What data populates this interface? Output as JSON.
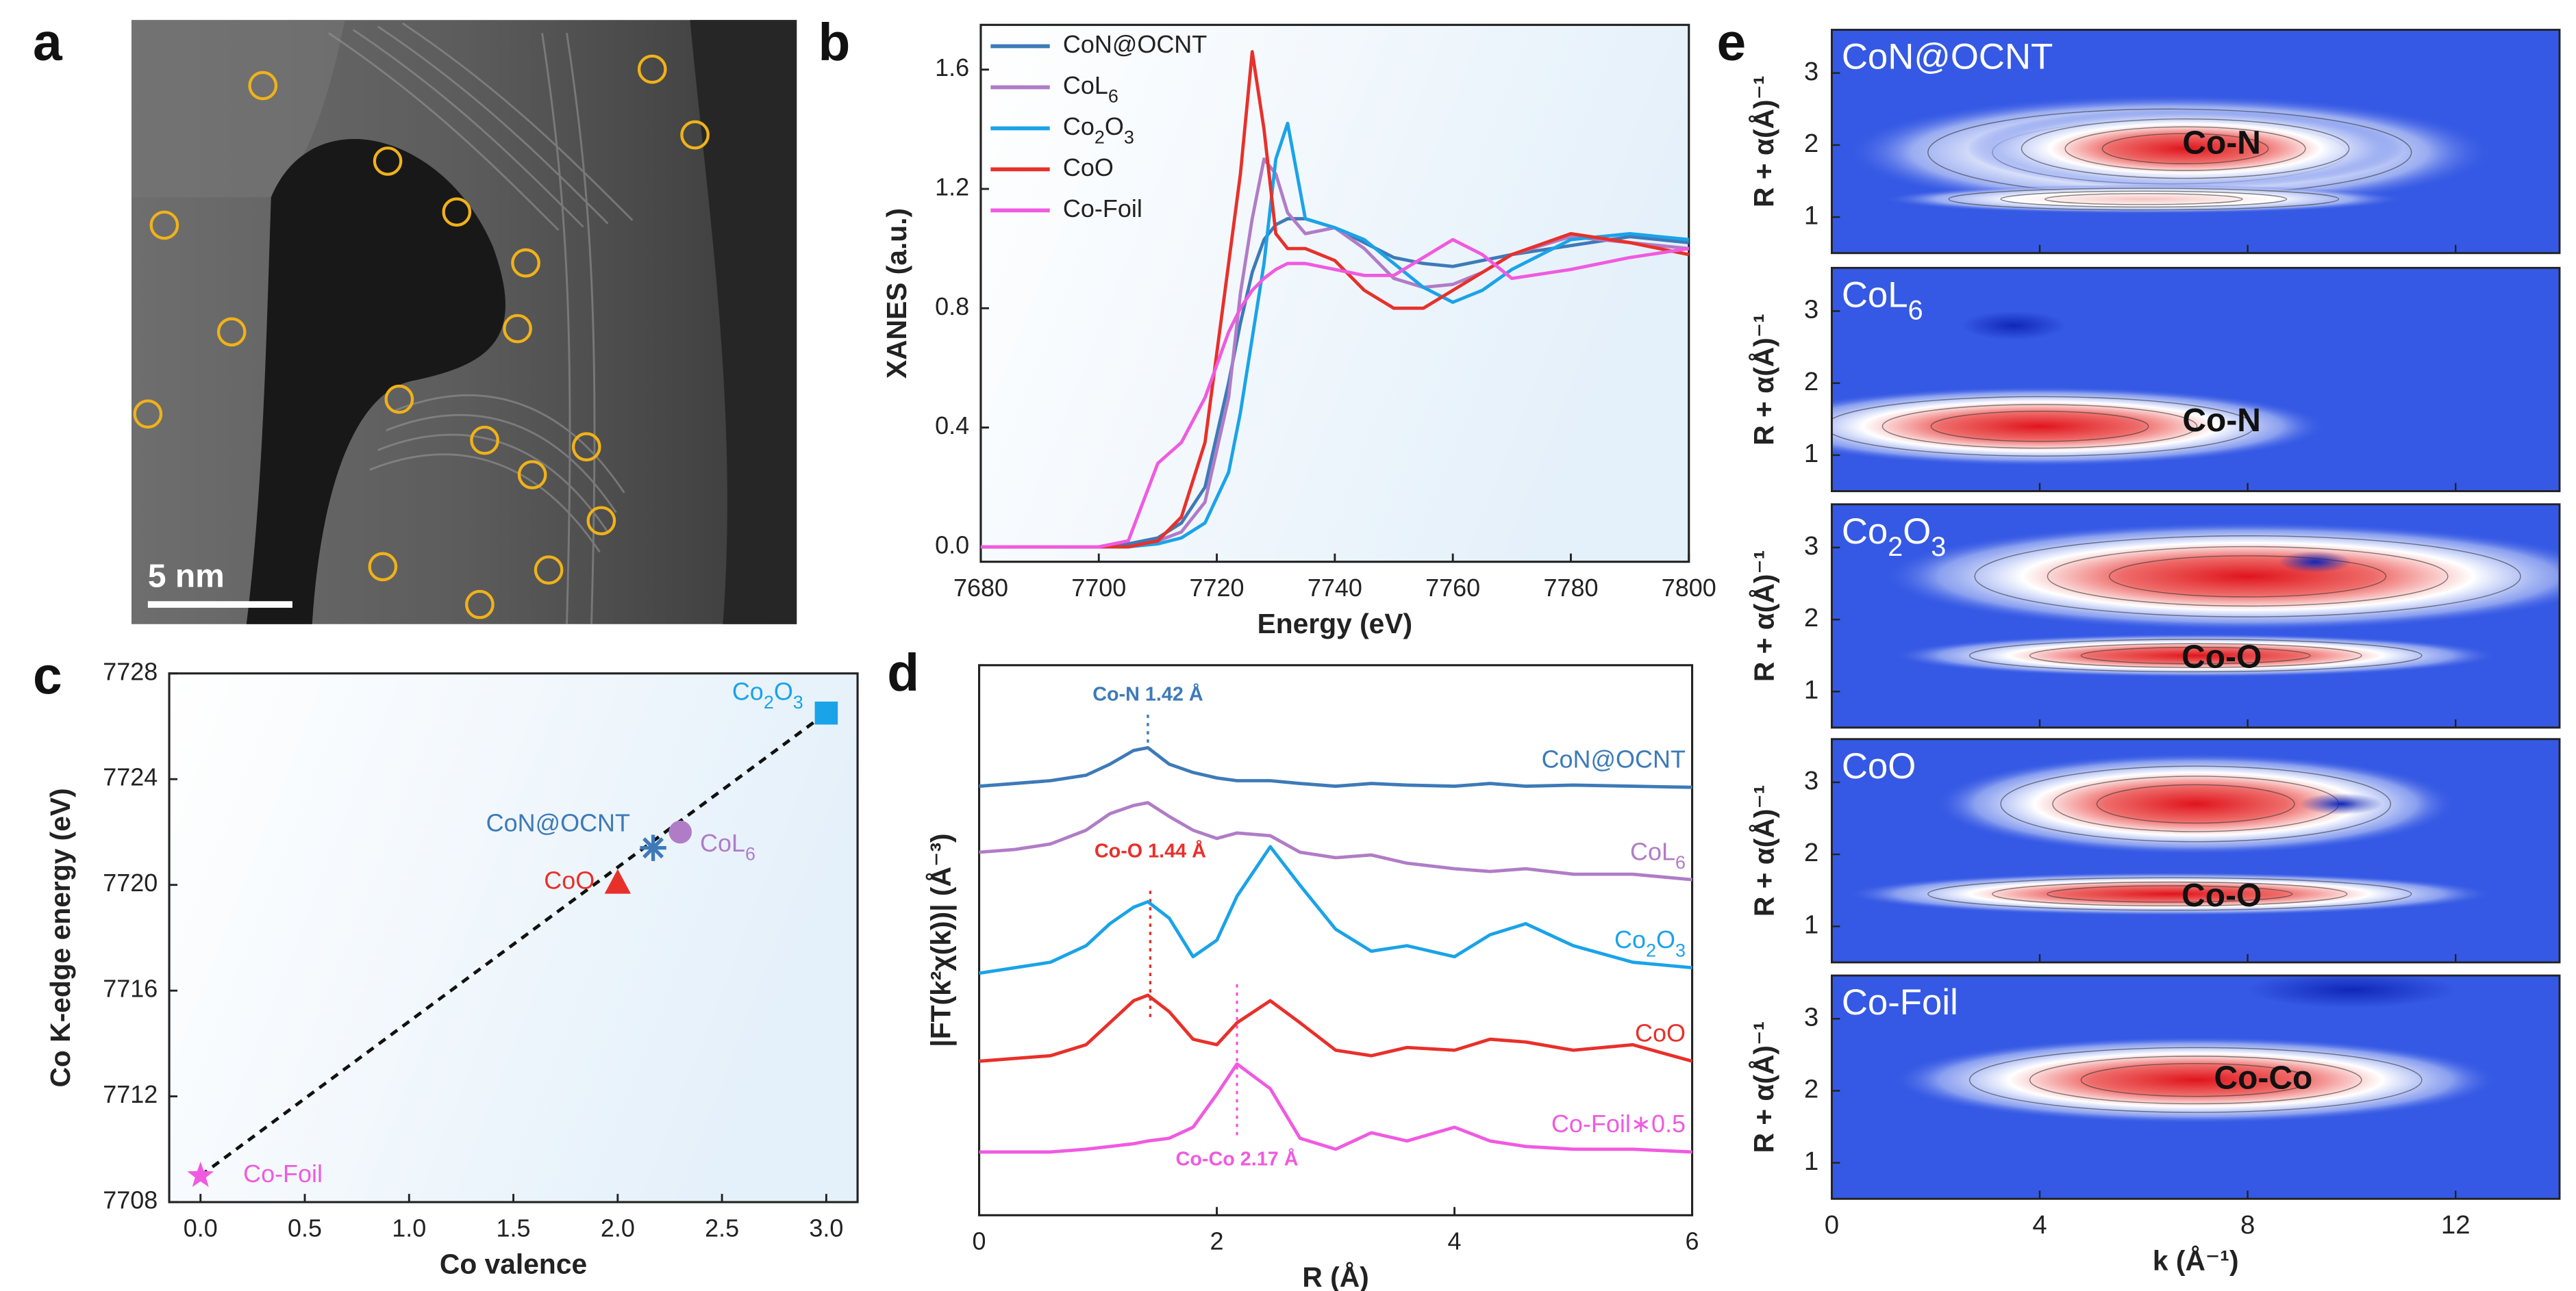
{
  "image_panel": {
    "label": "a",
    "scale_bar": "5 nm"
  },
  "chart_data": [
    {
      "type": "line",
      "label": "b",
      "xlabel": "Energy (eV)",
      "ylabel": "XANES (a.u.)",
      "x": [
        7680,
        7700,
        7705,
        7710,
        7714,
        7718,
        7722,
        7724,
        7726,
        7728,
        7730,
        7732,
        7735,
        7740,
        7745,
        7750,
        7755,
        7760,
        7765,
        7770,
        7780,
        7790,
        7800
      ],
      "xlim": [
        7680,
        7800
      ],
      "xticks": [
        7680,
        7700,
        7720,
        7740,
        7760,
        7780,
        7800
      ],
      "ylim": [
        -0.05,
        1.75
      ],
      "yticks": [
        {
          "value": 0,
          "label": "0.0"
        },
        0.4,
        0.8,
        1.2,
        1.6
      ],
      "legend": "upper left",
      "series": [
        {
          "name": "CoN@OCNT",
          "color": "#3d7ab8",
          "values": [
            0,
            0,
            0.01,
            0.03,
            0.08,
            0.2,
            0.55,
            0.75,
            0.92,
            1.03,
            1.08,
            1.1,
            1.1,
            1.07,
            1.02,
            0.97,
            0.95,
            0.94,
            0.96,
            0.98,
            1.01,
            1.04,
            1.02
          ]
        },
        {
          "name": "CoL6",
          "color": "#b07cc6",
          "values": [
            0,
            0,
            0,
            0.02,
            0.05,
            0.15,
            0.5,
            0.85,
            1.1,
            1.3,
            1.25,
            1.12,
            1.05,
            1.07,
            1.0,
            0.9,
            0.87,
            0.88,
            0.92,
            0.98,
            1.04,
            1.02,
            1.0
          ]
        },
        {
          "name": "Co2O3",
          "color": "#1aa3e8",
          "values": [
            0,
            0,
            0,
            0.01,
            0.03,
            0.08,
            0.25,
            0.45,
            0.7,
            0.95,
            1.3,
            1.42,
            1.1,
            1.07,
            1.03,
            0.95,
            0.87,
            0.82,
            0.86,
            0.93,
            1.03,
            1.05,
            1.03
          ]
        },
        {
          "name": "CoO",
          "color": "#e8302a",
          "values": [
            0,
            0,
            0,
            0.02,
            0.1,
            0.35,
            0.95,
            1.25,
            1.66,
            1.4,
            1.05,
            1.0,
            1.0,
            0.96,
            0.86,
            0.8,
            0.8,
            0.86,
            0.92,
            0.98,
            1.05,
            1.02,
            0.98
          ]
        },
        {
          "name": "Co-Foil",
          "color": "#f05ae0",
          "values": [
            0,
            0,
            0.02,
            0.28,
            0.35,
            0.5,
            0.72,
            0.8,
            0.86,
            0.9,
            0.93,
            0.95,
            0.95,
            0.93,
            0.91,
            0.91,
            0.97,
            1.03,
            0.98,
            0.9,
            0.93,
            0.97,
            1.0
          ]
        }
      ]
    },
    {
      "type": "scatter",
      "label": "c",
      "xlabel": "Co valence",
      "ylabel": "Co K-edge energy (eV)",
      "xlim": [
        -0.15,
        3.15
      ],
      "xticks": [
        {
          "value": 0,
          "label": "0.0"
        },
        0.5,
        {
          "value": 1,
          "label": "1.0"
        },
        1.5,
        {
          "value": 2,
          "label": "2.0"
        },
        2.5,
        {
          "value": 3,
          "label": "3.0"
        }
      ],
      "ylim": [
        7708,
        7728
      ],
      "yticks": [
        7708,
        7712,
        7716,
        7720,
        7724,
        7728
      ],
      "series": [
        {
          "name": "Co-Foil",
          "color": "#f05ae0",
          "marker": "star",
          "x": [
            0
          ],
          "values": [
            7709
          ]
        },
        {
          "name": "CoO",
          "color": "#e8302a",
          "marker": "triangle",
          "x": [
            2
          ],
          "values": [
            7720.1
          ]
        },
        {
          "name": "CoN@OCNT",
          "color": "#3d7ab8",
          "marker": "asterisk",
          "x": [
            2.17
          ],
          "values": [
            7721.4
          ]
        },
        {
          "name": "CoL6",
          "color": "#b07cc6",
          "marker": "circle",
          "x": [
            2.3
          ],
          "values": [
            7722
          ]
        },
        {
          "name": "Co2O3",
          "color": "#1aa3e8",
          "marker": "square",
          "x": [
            3
          ],
          "values": [
            7726.5
          ]
        }
      ],
      "fit_line": {
        "color": "#111111",
        "x": [
          0,
          3
        ],
        "values": [
          7709,
          7726.5
        ]
      }
    },
    {
      "type": "line",
      "label": "d",
      "xlabel": "R (Å)",
      "ylabel": "|FT(k²χ(k))| (Å⁻³)",
      "x": [
        0,
        0.3,
        0.6,
        0.9,
        1.1,
        1.3,
        1.42,
        1.6,
        1.8,
        2.0,
        2.17,
        2.45,
        2.7,
        3.0,
        3.3,
        3.6,
        4.0,
        4.3,
        4.6,
        5.0,
        5.5,
        6.0
      ],
      "xlim": [
        0,
        6
      ],
      "xticks": [
        0,
        2,
        4,
        6
      ],
      "ylim": [
        0,
        10
      ],
      "legend": "curve end",
      "series": [
        {
          "name": "CoN@OCNT",
          "color": "#3d7ab8",
          "values": [
            7.8,
            7.85,
            7.9,
            8.0,
            8.2,
            8.45,
            8.5,
            8.2,
            8.05,
            7.95,
            7.9,
            7.9,
            7.85,
            7.8,
            7.85,
            7.82,
            7.8,
            7.85,
            7.8,
            7.82,
            7.8,
            7.78
          ]
        },
        {
          "name": "CoL6",
          "color": "#b07cc6",
          "values": [
            6.6,
            6.65,
            6.75,
            7.0,
            7.3,
            7.45,
            7.5,
            7.25,
            7.0,
            6.85,
            6.95,
            6.9,
            6.6,
            6.5,
            6.55,
            6.4,
            6.3,
            6.25,
            6.3,
            6.2,
            6.2,
            6.1
          ]
        },
        {
          "name": "Co2O3",
          "color": "#1aa3e8",
          "values": [
            4.4,
            4.5,
            4.6,
            4.9,
            5.3,
            5.6,
            5.7,
            5.4,
            4.7,
            5.0,
            5.8,
            6.7,
            6.0,
            5.2,
            4.8,
            4.9,
            4.7,
            5.1,
            5.3,
            4.9,
            4.6,
            4.5
          ]
        },
        {
          "name": "CoO",
          "color": "#e8302a",
          "values": [
            2.8,
            2.85,
            2.9,
            3.1,
            3.5,
            3.9,
            4.0,
            3.7,
            3.2,
            3.1,
            3.5,
            3.9,
            3.5,
            3.0,
            2.9,
            3.05,
            3.0,
            3.2,
            3.15,
            3.0,
            3.1,
            2.8
          ]
        },
        {
          "name": "Co-Foil∗0.5",
          "color": "#f05ae0",
          "values": [
            1.15,
            1.15,
            1.15,
            1.2,
            1.25,
            1.3,
            1.35,
            1.4,
            1.6,
            2.2,
            2.75,
            2.3,
            1.4,
            1.2,
            1.5,
            1.35,
            1.6,
            1.35,
            1.25,
            1.2,
            1.2,
            1.15
          ]
        }
      ],
      "markers": [
        {
          "label": "Co-N 1.42 Å",
          "x": 1.42,
          "color": "#3d7ab8"
        },
        {
          "label": "Co-O 1.44 Å",
          "x": 1.44,
          "color": "#e8302a"
        },
        {
          "label": "Co-Co 2.17 Å",
          "x": 2.17,
          "color": "#f05ae0"
        }
      ]
    },
    {
      "type": "wavelet",
      "label": "e",
      "xlabel": "k (Å⁻¹)",
      "ylabel": "R + α(Å)⁻¹",
      "xlim": [
        0,
        14
      ],
      "xticks": [
        0,
        4,
        8,
        12
      ],
      "ylim": [
        0.5,
        3.6
      ],
      "yticks": [
        1,
        2,
        3
      ],
      "panels": [
        {
          "name": "CoN@OCNT",
          "bond": "Co-N"
        },
        {
          "name": "CoL6",
          "bond": "Co-N"
        },
        {
          "name": "Co2O3",
          "bond": "Co-O"
        },
        {
          "name": "CoO",
          "bond": "Co-O"
        },
        {
          "name": "Co-Foil",
          "bond": "Co-Co"
        }
      ]
    }
  ]
}
